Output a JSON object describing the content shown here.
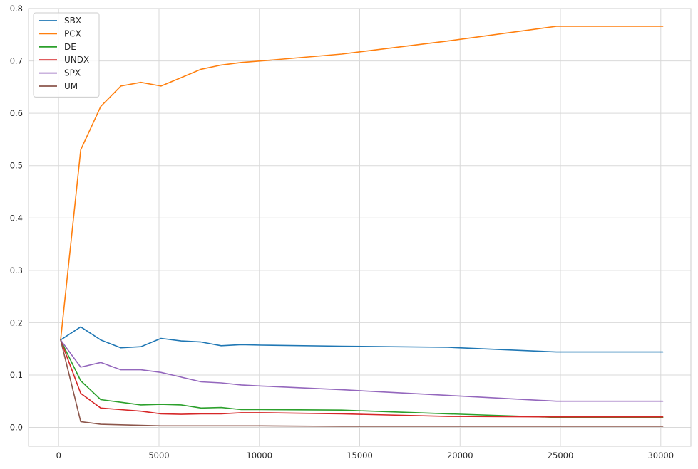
{
  "chart_data": {
    "type": "line",
    "title": "",
    "xlabel": "",
    "ylabel": "",
    "xlim": [
      -1500,
      31500
    ],
    "ylim": [
      -0.036,
      0.8
    ],
    "x_ticks": [
      0,
      5000,
      10000,
      15000,
      20000,
      25000,
      30000
    ],
    "x_tick_labels": [
      "0",
      "5000",
      "10000",
      "15000",
      "20000",
      "25000",
      "30000"
    ],
    "y_ticks": [
      0.0,
      0.1,
      0.2,
      0.3,
      0.4,
      0.5,
      0.6,
      0.7,
      0.8
    ],
    "y_tick_labels": [
      "0.0",
      "0.1",
      "0.2",
      "0.3",
      "0.4",
      "0.5",
      "0.6",
      "0.7",
      "0.8"
    ],
    "grid": true,
    "legend_position": "top-left",
    "series": [
      {
        "name": "SBX",
        "color": "#1f77b4",
        "x": [
          100,
          1100,
          2100,
          3100,
          4100,
          5100,
          6100,
          7100,
          8100,
          9100,
          10100,
          14100,
          19400,
          24800,
          30100
        ],
        "y": [
          0.167,
          0.192,
          0.167,
          0.152,
          0.154,
          0.17,
          0.165,
          0.163,
          0.156,
          0.158,
          0.157,
          0.155,
          0.153,
          0.144,
          0.144
        ]
      },
      {
        "name": "PCX",
        "color": "#ff7f0e",
        "x": [
          100,
          1100,
          2100,
          3100,
          4100,
          5100,
          6100,
          7100,
          8100,
          9100,
          10100,
          14100,
          19400,
          24800,
          30100
        ],
        "y": [
          0.167,
          0.53,
          0.613,
          0.652,
          0.659,
          0.652,
          0.668,
          0.684,
          0.692,
          0.697,
          0.7,
          0.713,
          0.738,
          0.766,
          0.766
        ]
      },
      {
        "name": "DE",
        "color": "#2ca02c",
        "x": [
          100,
          1100,
          2100,
          3100,
          4100,
          5100,
          6100,
          7100,
          8100,
          9100,
          10100,
          14100,
          19400,
          24800,
          30100
        ],
        "y": [
          0.167,
          0.089,
          0.053,
          0.048,
          0.043,
          0.044,
          0.043,
          0.037,
          0.038,
          0.034,
          0.034,
          0.033,
          0.026,
          0.019,
          0.019
        ]
      },
      {
        "name": "UNDX",
        "color": "#d62728",
        "x": [
          100,
          1100,
          2100,
          3100,
          4100,
          5100,
          6100,
          7100,
          8100,
          9100,
          10100,
          14100,
          19400,
          24800,
          30100
        ],
        "y": [
          0.167,
          0.065,
          0.037,
          0.034,
          0.031,
          0.026,
          0.025,
          0.026,
          0.026,
          0.028,
          0.028,
          0.026,
          0.021,
          0.02,
          0.02
        ]
      },
      {
        "name": "SPX",
        "color": "#9467bd",
        "x": [
          100,
          1100,
          2100,
          3100,
          4100,
          5100,
          6100,
          7100,
          8100,
          9100,
          10100,
          14100,
          19400,
          24800,
          30100
        ],
        "y": [
          0.167,
          0.115,
          0.124,
          0.11,
          0.11,
          0.105,
          0.096,
          0.087,
          0.085,
          0.081,
          0.079,
          0.072,
          0.061,
          0.05,
          0.05
        ]
      },
      {
        "name": "UM",
        "color": "#8c564b",
        "x": [
          100,
          1100,
          2100,
          3100,
          4100,
          5100,
          6100,
          7100,
          8100,
          9100,
          10100,
          14100,
          19400,
          24800,
          30100
        ],
        "y": [
          0.167,
          0.011,
          0.006,
          0.005,
          0.004,
          0.003,
          0.003,
          0.003,
          0.003,
          0.003,
          0.003,
          0.002,
          0.002,
          0.002,
          0.002
        ]
      }
    ]
  }
}
